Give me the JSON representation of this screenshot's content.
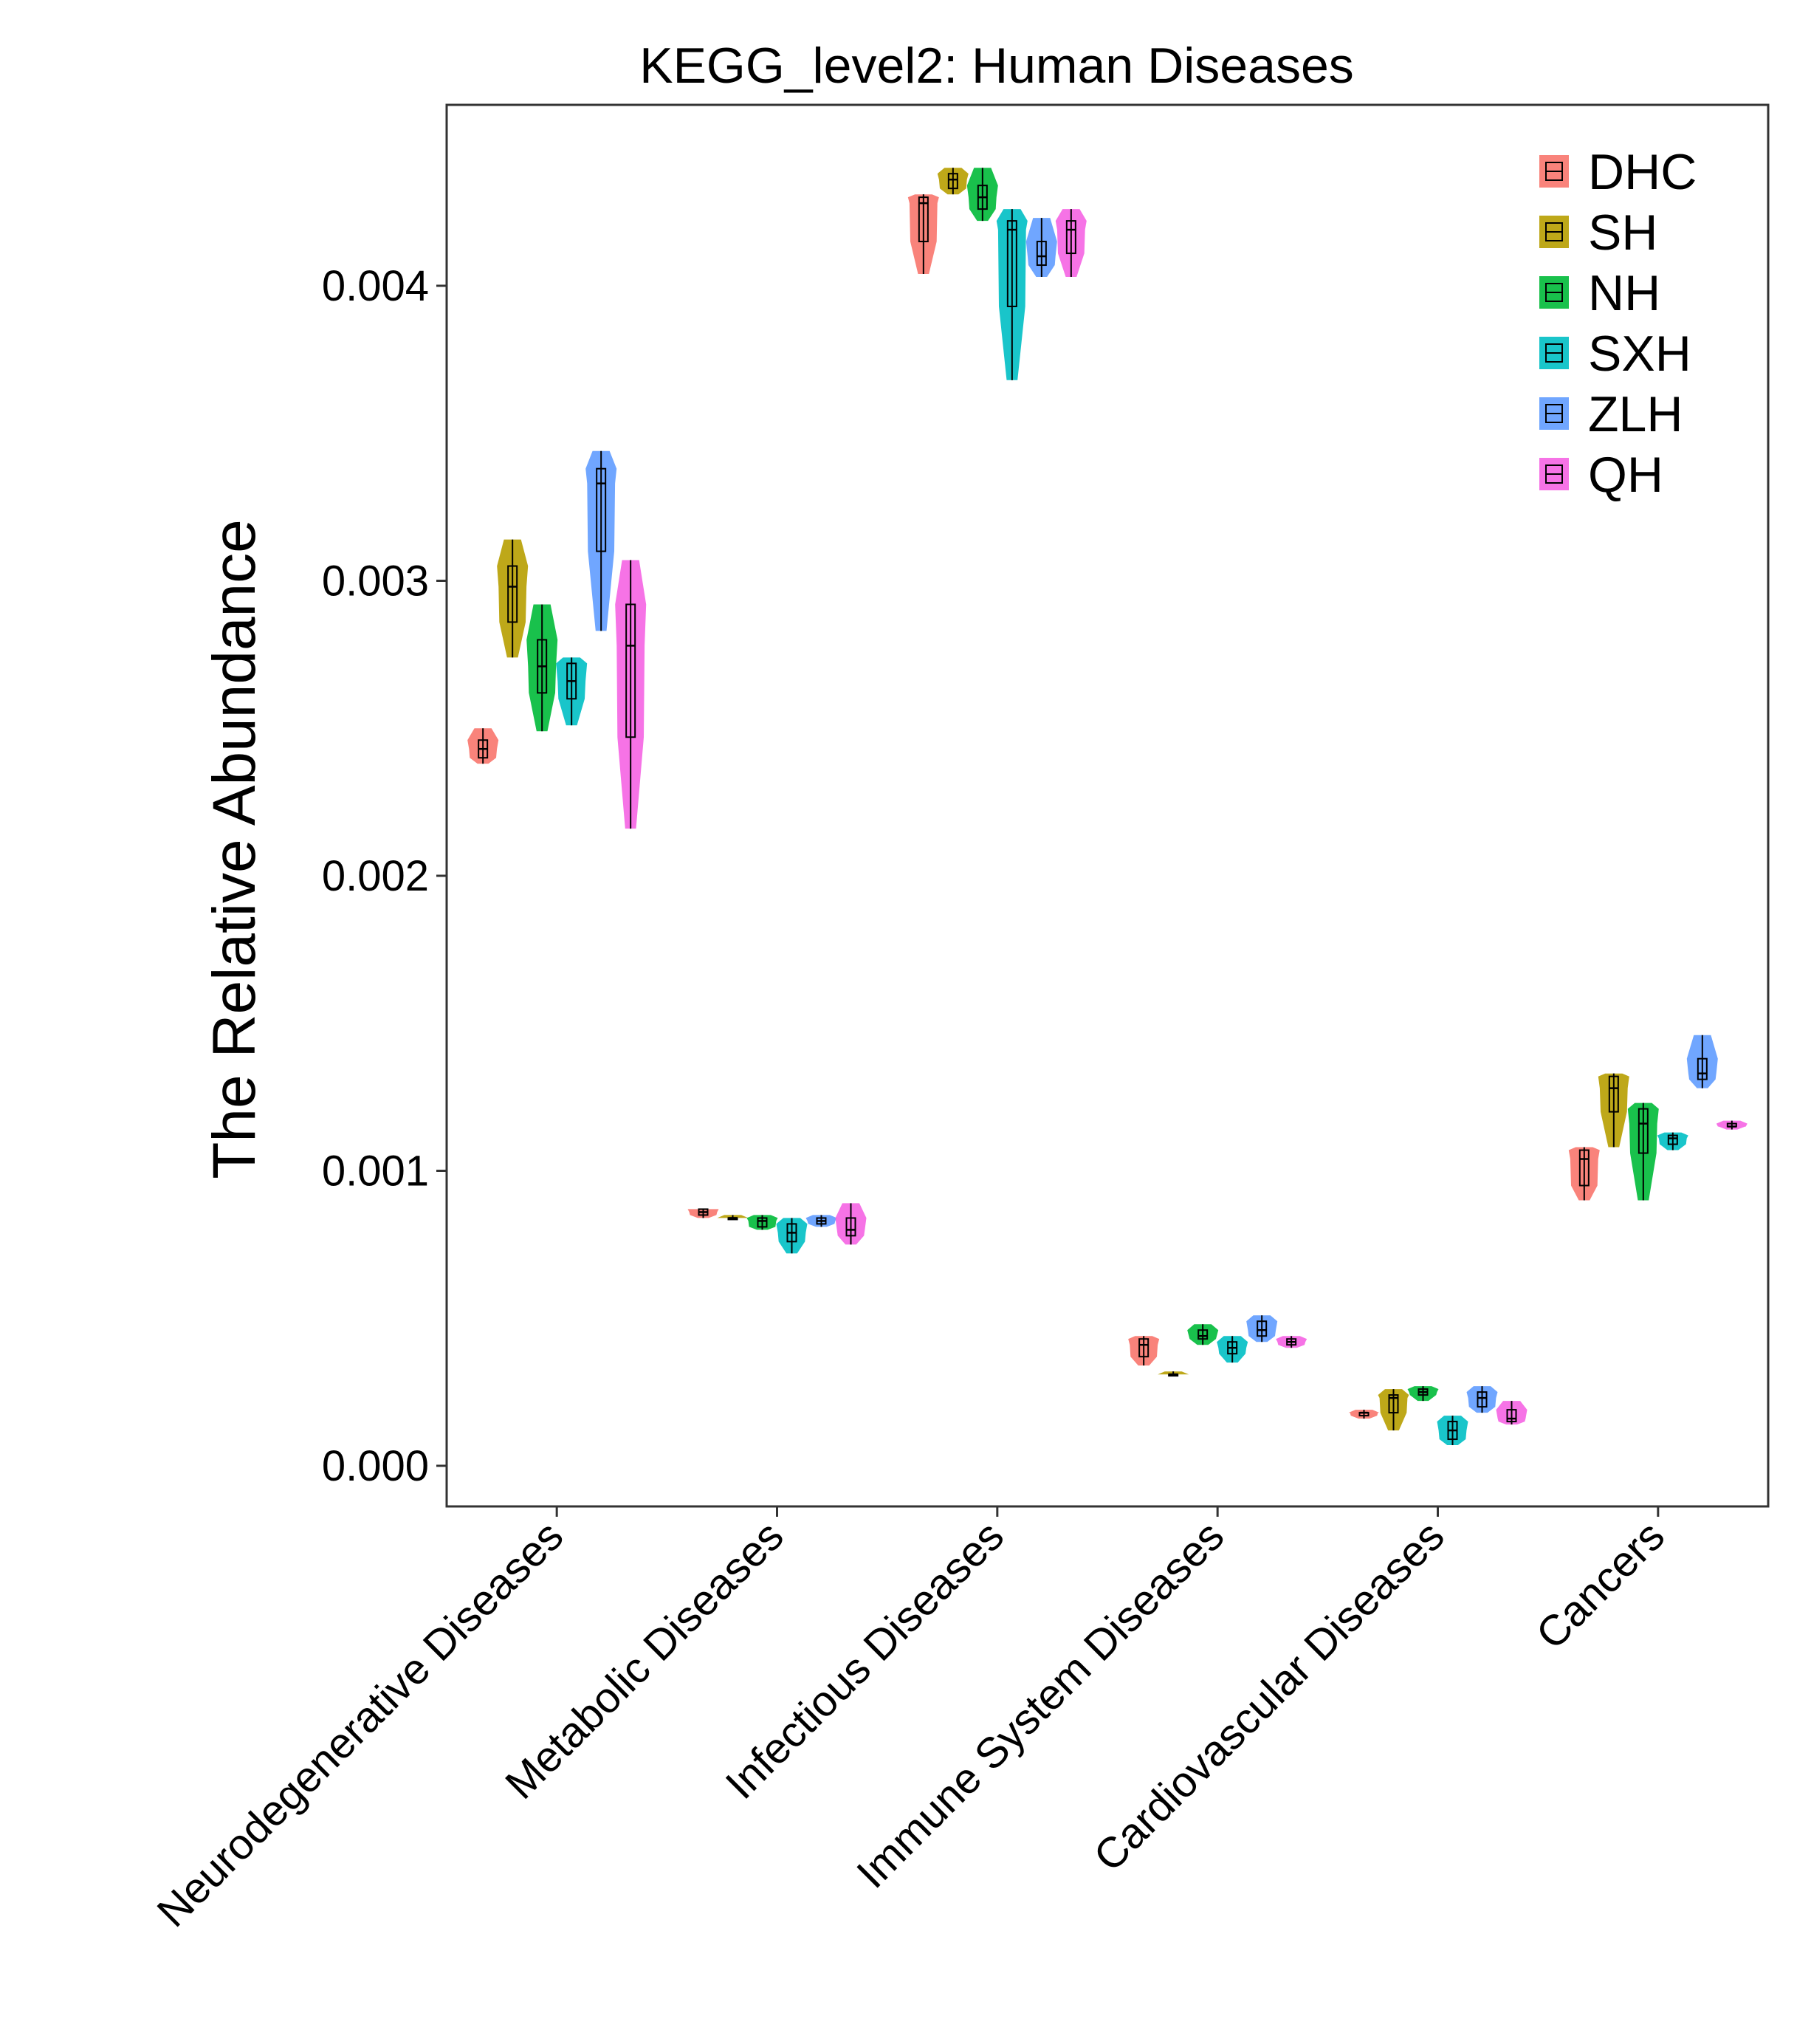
{
  "chart_data": {
    "type": "violin",
    "title": "KEGG_level2: Human Diseases",
    "xlabel": "",
    "ylabel": "The Relative Abundance",
    "ylim": [
      -0.00013,
      0.00462
    ],
    "yticks": [
      0.0,
      0.001,
      0.002,
      0.003,
      0.004
    ],
    "ytick_labels": [
      "0.000",
      "0.001",
      "0.002",
      "0.003",
      "0.004"
    ],
    "grid": false,
    "legend_position": "top-right",
    "categories": [
      "Neurodegenerative Diseases",
      "Metabolic Diseases",
      "Infectious Diseases",
      "Immune System Diseases",
      "Cardiovascular Diseases",
      "Cancers"
    ],
    "series": [
      {
        "name": "DHC",
        "color": "#F8766D",
        "values": [
          {
            "min": 0.00238,
            "q1": 0.0024,
            "median": 0.00243,
            "q3": 0.00246,
            "max": 0.0025
          },
          {
            "min": 0.00084,
            "q1": 0.00085,
            "median": 0.00086,
            "q3": 0.00087,
            "max": 0.00087
          },
          {
            "min": 0.00404,
            "q1": 0.00415,
            "median": 0.00428,
            "q3": 0.0043,
            "max": 0.00431
          },
          {
            "min": 0.00034,
            "q1": 0.00037,
            "median": 0.00041,
            "q3": 0.00043,
            "max": 0.00044
          },
          {
            "min": 0.00016,
            "q1": 0.00017,
            "median": 0.00018,
            "q3": 0.00018,
            "max": 0.00019
          },
          {
            "min": 0.0009,
            "q1": 0.00095,
            "median": 0.00104,
            "q3": 0.00107,
            "max": 0.00108
          }
        ]
      },
      {
        "name": "SH",
        "color": "#B79F00",
        "values": [
          {
            "min": 0.00274,
            "q1": 0.00286,
            "median": 0.00298,
            "q3": 0.00305,
            "max": 0.00314
          },
          {
            "min": 0.00084,
            "q1": 0.00084,
            "median": 0.00084,
            "q3": 0.00084,
            "max": 0.00085
          },
          {
            "min": 0.00431,
            "q1": 0.00433,
            "median": 0.00436,
            "q3": 0.00438,
            "max": 0.0044
          },
          {
            "min": 0.00031,
            "q1": 0.00031,
            "median": 0.00031,
            "q3": 0.00031,
            "max": 0.00032
          },
          {
            "min": 0.00012,
            "q1": 0.00018,
            "median": 0.00023,
            "q3": 0.00024,
            "max": 0.00026
          },
          {
            "min": 0.00108,
            "q1": 0.0012,
            "median": 0.00128,
            "q3": 0.00132,
            "max": 0.00133
          }
        ]
      },
      {
        "name": "NH",
        "color": "#00BA38",
        "values": [
          {
            "min": 0.00249,
            "q1": 0.00262,
            "median": 0.00271,
            "q3": 0.0028,
            "max": 0.00292
          },
          {
            "min": 0.0008,
            "q1": 0.00081,
            "median": 0.00083,
            "q3": 0.00084,
            "max": 0.00085
          },
          {
            "min": 0.00422,
            "q1": 0.00426,
            "median": 0.0043,
            "q3": 0.00434,
            "max": 0.0044
          },
          {
            "min": 0.00041,
            "q1": 0.00043,
            "median": 0.00044,
            "q3": 0.00046,
            "max": 0.00048
          },
          {
            "min": 0.00022,
            "q1": 0.00024,
            "median": 0.00025,
            "q3": 0.00026,
            "max": 0.00027
          },
          {
            "min": 0.0009,
            "q1": 0.00106,
            "median": 0.00116,
            "q3": 0.00121,
            "max": 0.00123
          }
        ]
      },
      {
        "name": "SXH",
        "color": "#00BFC4",
        "values": [
          {
            "min": 0.00251,
            "q1": 0.0026,
            "median": 0.00266,
            "q3": 0.00272,
            "max": 0.00274
          },
          {
            "min": 0.00072,
            "q1": 0.00076,
            "median": 0.00079,
            "q3": 0.00082,
            "max": 0.00084
          },
          {
            "min": 0.00368,
            "q1": 0.00393,
            "median": 0.00419,
            "q3": 0.00422,
            "max": 0.00426
          },
          {
            "min": 0.00035,
            "q1": 0.00038,
            "median": 0.0004,
            "q3": 0.00042,
            "max": 0.00044
          },
          {
            "min": 7e-05,
            "q1": 9e-05,
            "median": 0.00012,
            "q3": 0.00015,
            "max": 0.00017
          },
          {
            "min": 0.00107,
            "q1": 0.00109,
            "median": 0.00111,
            "q3": 0.00112,
            "max": 0.00113
          }
        ]
      },
      {
        "name": "ZLH",
        "color": "#619CFF",
        "values": [
          {
            "min": 0.00283,
            "q1": 0.0031,
            "median": 0.00333,
            "q3": 0.00338,
            "max": 0.00344
          },
          {
            "min": 0.00081,
            "q1": 0.00082,
            "median": 0.00083,
            "q3": 0.00084,
            "max": 0.00085
          },
          {
            "min": 0.00403,
            "q1": 0.00407,
            "median": 0.0041,
            "q3": 0.00415,
            "max": 0.00423
          },
          {
            "min": 0.00042,
            "q1": 0.00044,
            "median": 0.00046,
            "q3": 0.00049,
            "max": 0.00051
          },
          {
            "min": 0.00018,
            "q1": 0.0002,
            "median": 0.00023,
            "q3": 0.00025,
            "max": 0.00027
          },
          {
            "min": 0.00128,
            "q1": 0.00131,
            "median": 0.00133,
            "q3": 0.00138,
            "max": 0.00146
          }
        ]
      },
      {
        "name": "QH",
        "color": "#F564E3",
        "values": [
          {
            "min": 0.00216,
            "q1": 0.00247,
            "median": 0.00278,
            "q3": 0.00292,
            "max": 0.00307
          },
          {
            "min": 0.00075,
            "q1": 0.00078,
            "median": 0.0008,
            "q3": 0.00084,
            "max": 0.00089
          },
          {
            "min": 0.00403,
            "q1": 0.00411,
            "median": 0.00419,
            "q3": 0.00422,
            "max": 0.00426
          },
          {
            "min": 0.0004,
            "q1": 0.00041,
            "median": 0.00042,
            "q3": 0.00043,
            "max": 0.00044
          },
          {
            "min": 0.00014,
            "q1": 0.00015,
            "median": 0.00016,
            "q3": 0.00019,
            "max": 0.00022
          },
          {
            "min": 0.00114,
            "q1": 0.00115,
            "median": 0.00115,
            "q3": 0.00116,
            "max": 0.00117
          }
        ]
      }
    ]
  }
}
